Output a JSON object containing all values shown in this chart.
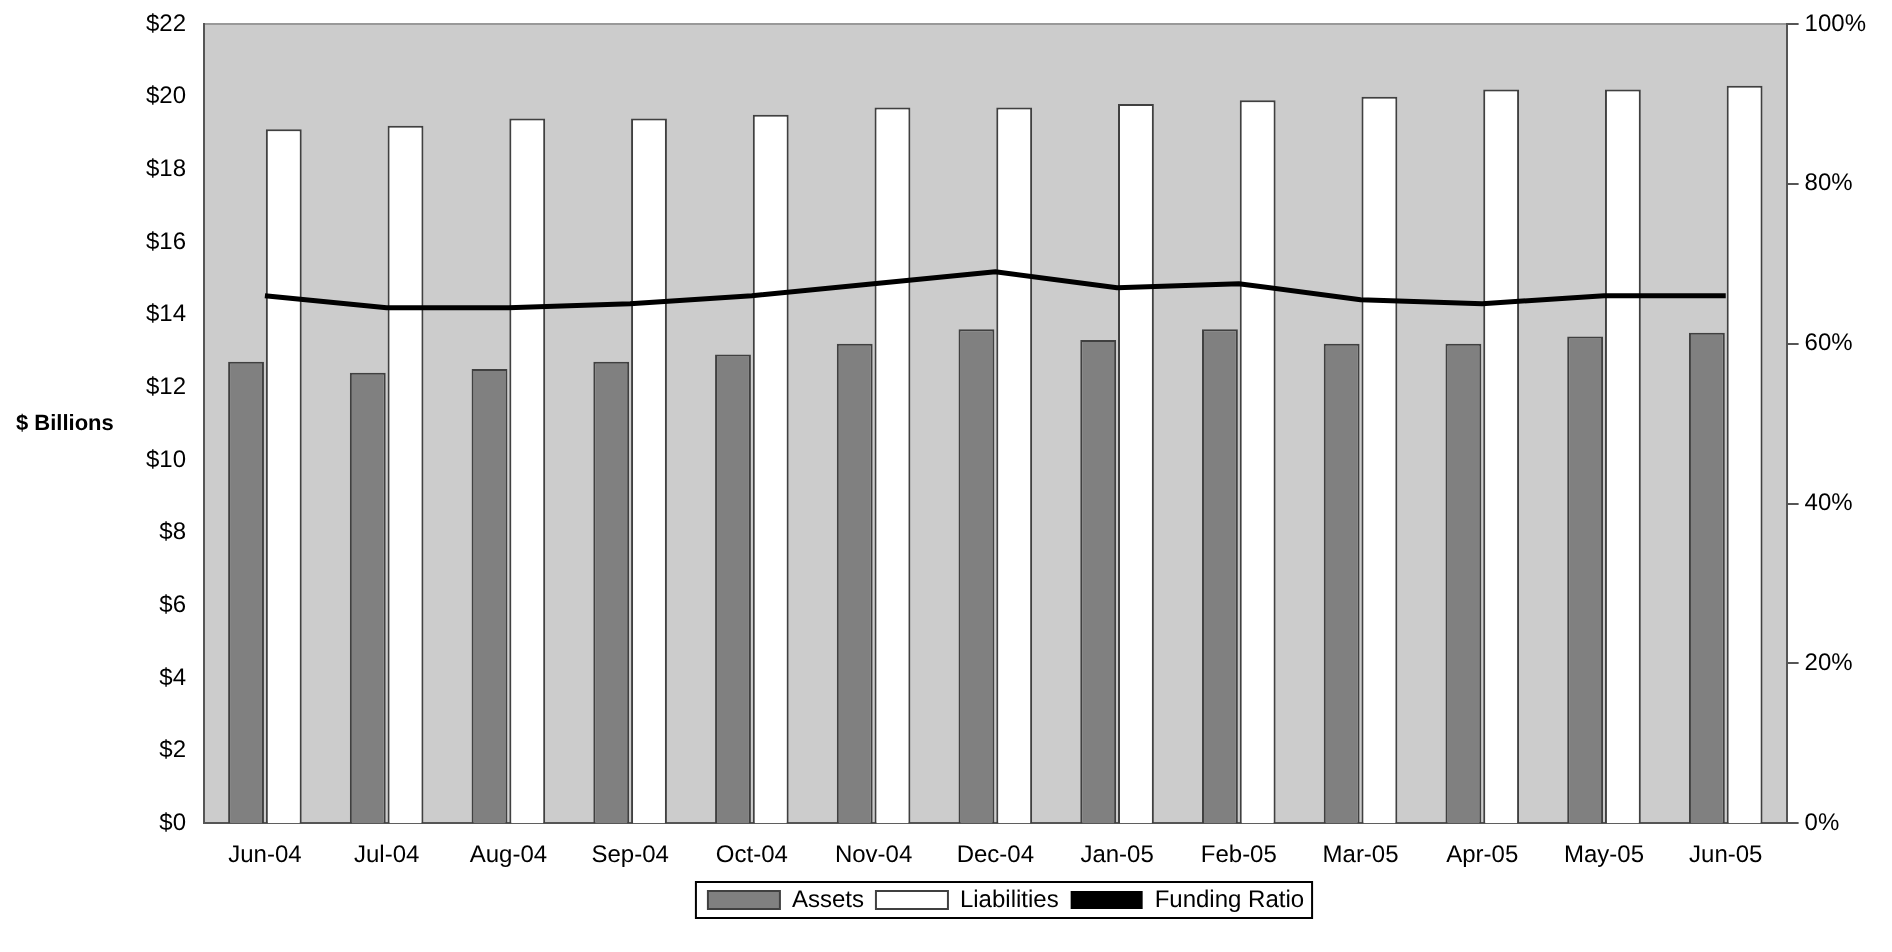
{
  "chart_data": {
    "type": "bar",
    "ylabel": "$ Billions",
    "categories": [
      "Jun-04",
      "Jul-04",
      "Aug-04",
      "Sep-04",
      "Oct-04",
      "Nov-04",
      "Dec-04",
      "Jan-05",
      "Feb-05",
      "Mar-05",
      "Apr-05",
      "May-05",
      "Jun-05"
    ],
    "series": [
      {
        "name": "Assets",
        "color": "#808080",
        "values": [
          12.7,
          12.4,
          12.5,
          12.7,
          12.9,
          13.2,
          13.6,
          13.3,
          13.6,
          13.2,
          13.2,
          13.4,
          13.5
        ]
      },
      {
        "name": "Liabilities",
        "color": "#ffffff",
        "values": [
          19.1,
          19.2,
          19.4,
          19.4,
          19.5,
          19.7,
          19.7,
          19.8,
          19.9,
          20.0,
          20.2,
          20.2,
          20.3
        ]
      },
      {
        "name": "Funding Ratio",
        "type": "line",
        "axis": "y2",
        "color": "#000000",
        "values": [
          66,
          64.5,
          64.5,
          65,
          66,
          67.5,
          69,
          67,
          67.5,
          65.5,
          65,
          66,
          66
        ]
      }
    ],
    "ylim": [
      0,
      22
    ],
    "yticks": [
      {
        "value": 0,
        "label": "$0"
      },
      {
        "value": 2,
        "label": "$2"
      },
      {
        "value": 4,
        "label": "$4"
      },
      {
        "value": 6,
        "label": "$6"
      },
      {
        "value": 8,
        "label": "$8"
      },
      {
        "value": 10,
        "label": "$10"
      },
      {
        "value": 12,
        "label": "$12"
      },
      {
        "value": 14,
        "label": "$14"
      },
      {
        "value": 16,
        "label": "$16"
      },
      {
        "value": 18,
        "label": "$18"
      },
      {
        "value": 20,
        "label": "$20"
      },
      {
        "value": 22,
        "label": "$22"
      }
    ],
    "y2lim": [
      0,
      100
    ],
    "y2ticks": [
      {
        "value": 0,
        "label": "0%"
      },
      {
        "value": 20,
        "label": "20%"
      },
      {
        "value": 40,
        "label": "40%"
      },
      {
        "value": 60,
        "label": "60%"
      },
      {
        "value": 80,
        "label": "80%"
      },
      {
        "value": 100,
        "label": "100%"
      }
    ],
    "grid": false,
    "legend": "bottom",
    "marker": "none",
    "line_style": "solid"
  }
}
